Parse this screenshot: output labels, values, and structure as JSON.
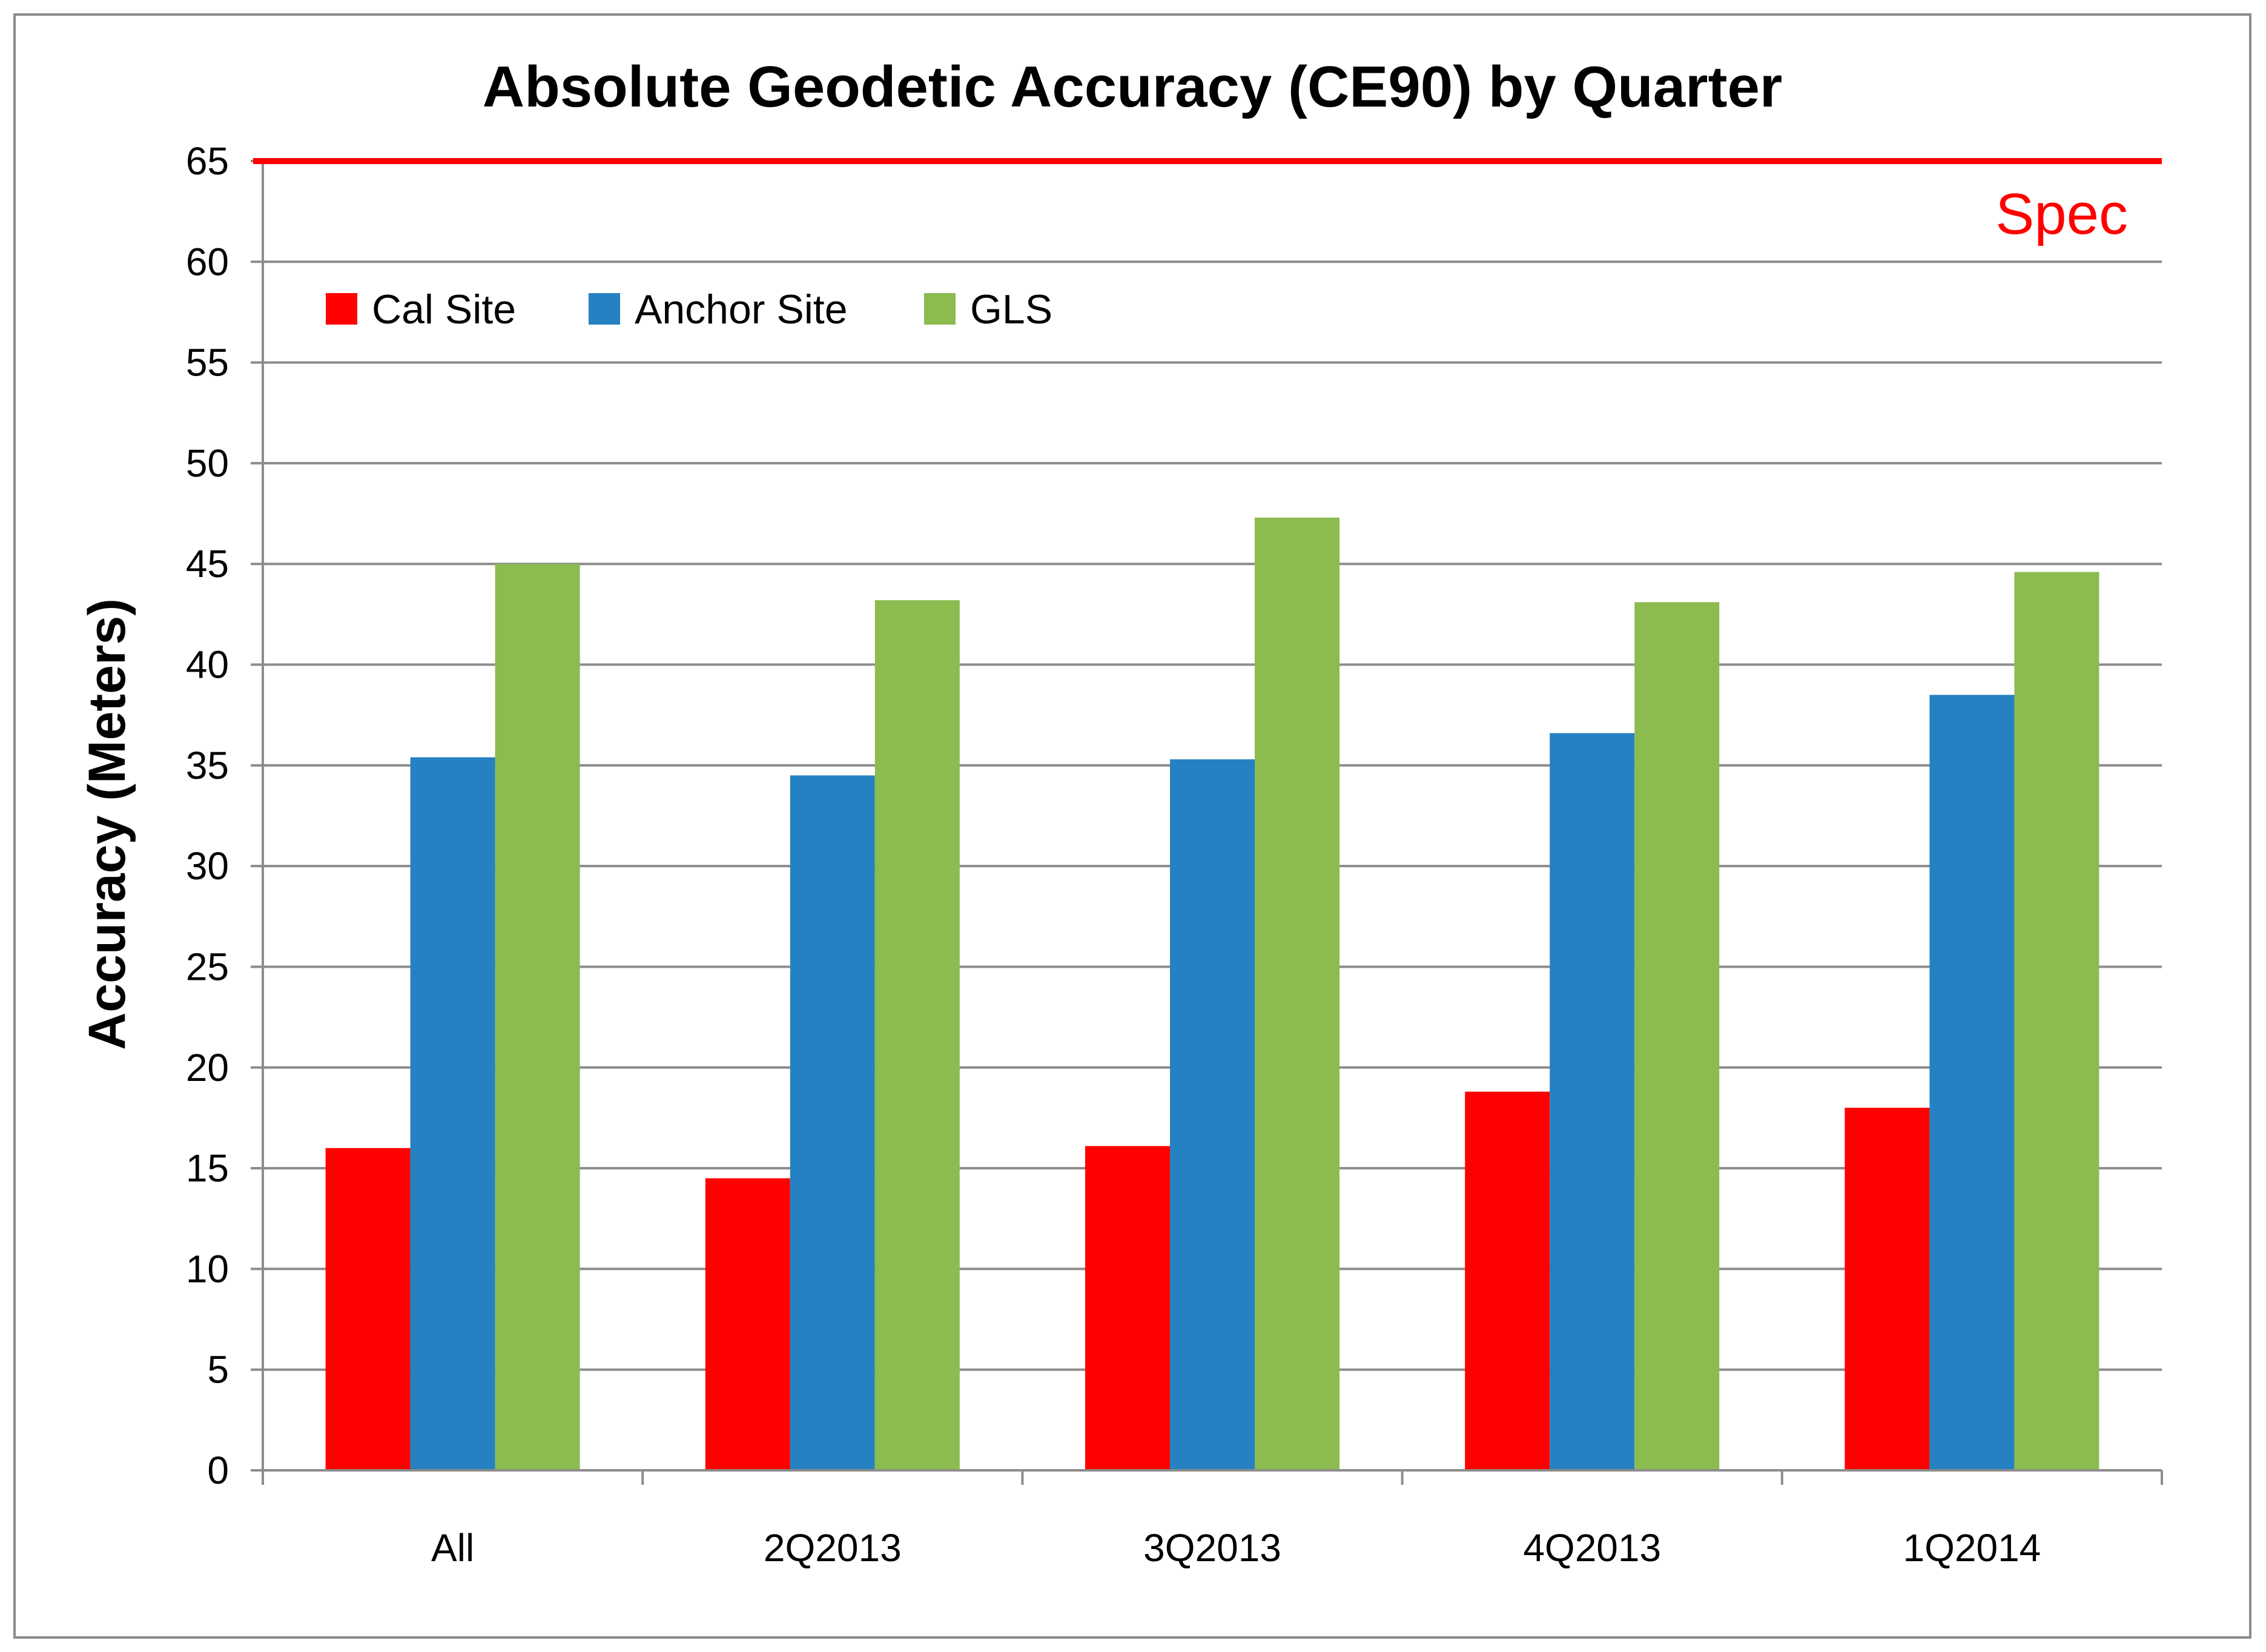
{
  "chart_data": {
    "type": "bar",
    "title": "Absolute Geodetic Accuracy (CE90) by Quarter",
    "ylabel": "Accuracy (Meters)",
    "xlabel": "",
    "ylim": [
      0,
      65
    ],
    "yticks": [
      0,
      5,
      10,
      15,
      20,
      25,
      30,
      35,
      40,
      45,
      50,
      55,
      60,
      65
    ],
    "categories": [
      "All",
      "2Q2013",
      "3Q2013",
      "4Q2013",
      "1Q2014"
    ],
    "series": [
      {
        "name": "Cal Site",
        "color": "#ff0000",
        "values": [
          16.0,
          14.5,
          16.1,
          18.8,
          18.0
        ]
      },
      {
        "name": "Anchor Site",
        "color": "#2681c3",
        "values": [
          35.4,
          34.5,
          35.3,
          36.6,
          38.5
        ]
      },
      {
        "name": "GLS",
        "color": "#8cbb4f",
        "values": [
          45.0,
          43.2,
          47.3,
          43.1,
          44.6
        ]
      }
    ],
    "grid": true,
    "legend_position": "top-left",
    "spec_line": {
      "value": 65,
      "label": "Spec",
      "color": "#ff0000"
    }
  }
}
